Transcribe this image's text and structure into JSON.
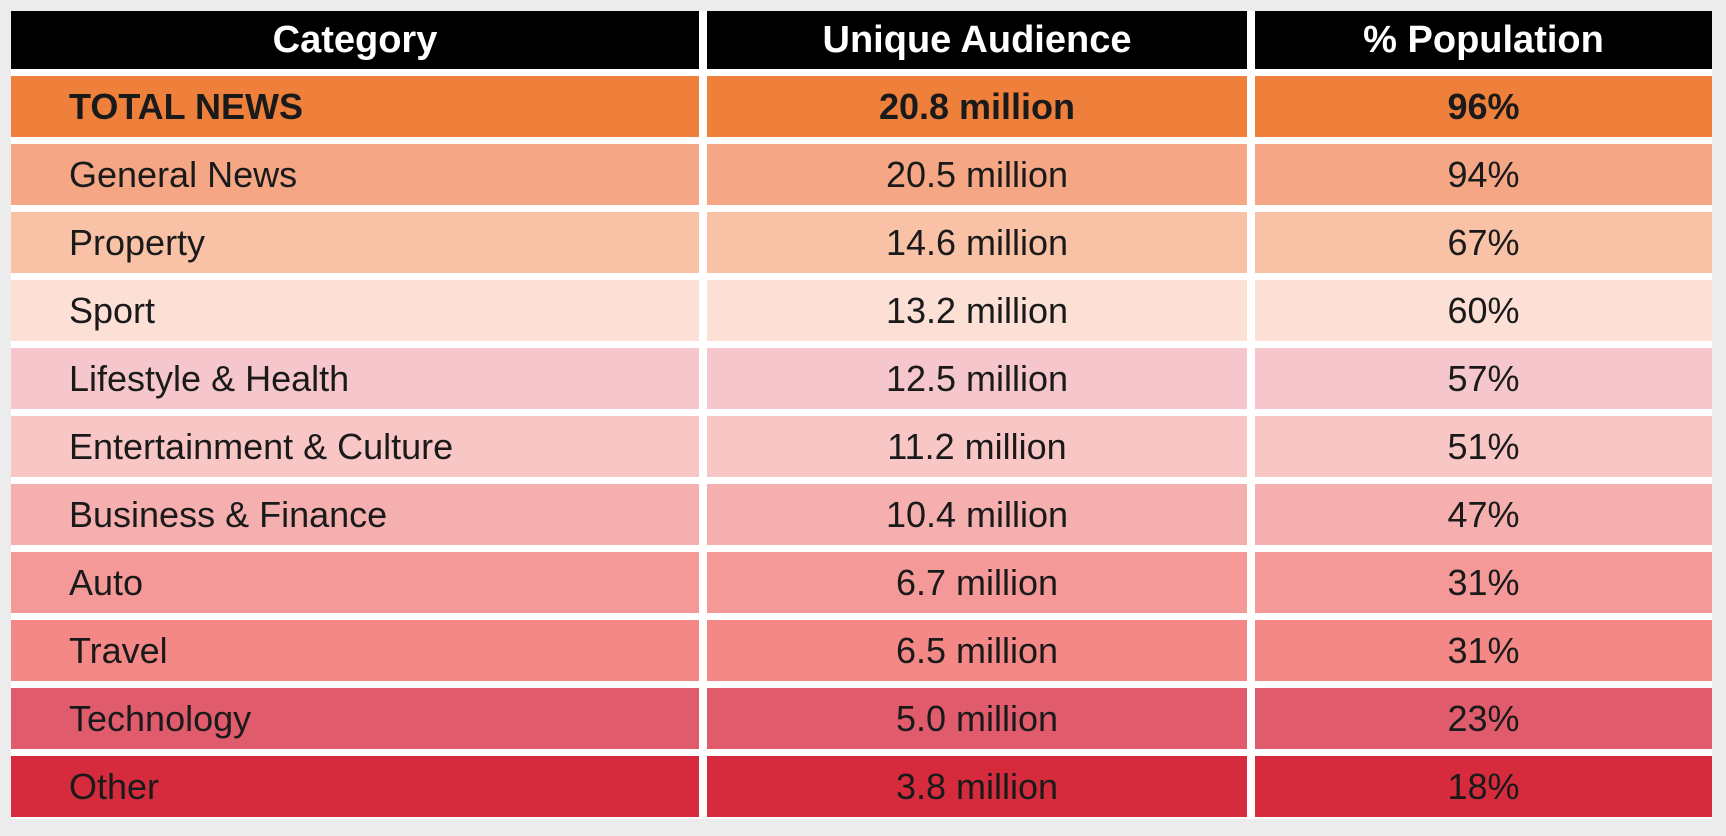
{
  "table": {
    "headers": [
      "Category",
      "Unique Audience",
      "% Population"
    ],
    "rows": [
      {
        "category": "TOTAL NEWS",
        "audience": "20.8 million",
        "population": "96%",
        "color": "#ee803c"
      },
      {
        "category": "General News",
        "audience": "20.5 million",
        "population": "94%",
        "color": "#f5a685"
      },
      {
        "category": "Property",
        "audience": "14.6 million",
        "population": "67%",
        "color": "#f9c2a7"
      },
      {
        "category": "Sport",
        "audience": "13.2 million",
        "population": "60%",
        "color": "#fce0d6"
      },
      {
        "category": "Lifestyle & Health",
        "audience": "12.5 million",
        "population": "57%",
        "color": "#f5c7cc"
      },
      {
        "category": "Entertainment & Culture",
        "audience": "11.2 million",
        "population": "51%",
        "color": "#f9c6c6"
      },
      {
        "category": "Business & Finance",
        "audience": "10.4 million",
        "population": "47%",
        "color": "#f6afaf"
      },
      {
        "category": "Auto",
        "audience": "6.7 million",
        "population": "31%",
        "color": "#f59898"
      },
      {
        "category": "Travel",
        "audience": "6.5 million",
        "population": "31%",
        "color": "#f48887"
      },
      {
        "category": "Technology",
        "audience": "5.0 million",
        "population": "23%",
        "color": "#e05c6c"
      },
      {
        "category": "Other",
        "audience": "3.8 million",
        "population": "18%",
        "color": "#d62b3d"
      }
    ]
  }
}
